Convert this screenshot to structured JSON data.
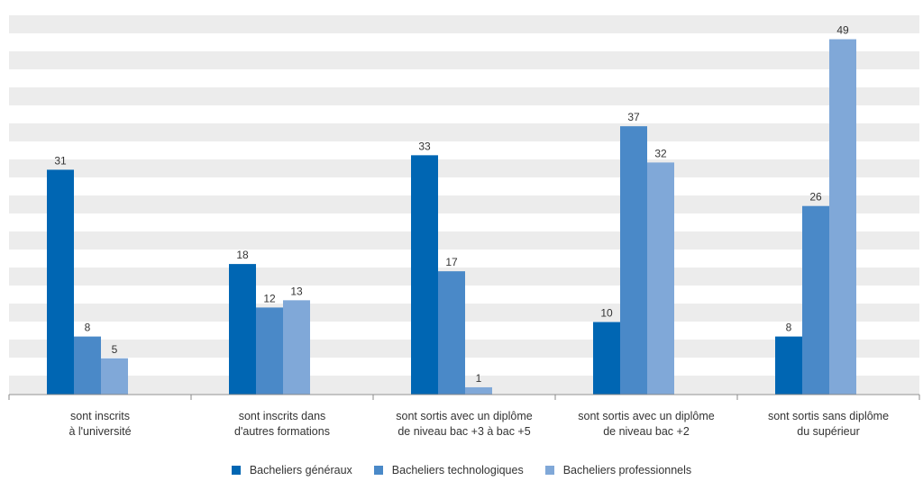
{
  "chart_data": {
    "type": "bar",
    "title": "",
    "xlabel": "",
    "ylabel": "",
    "ylim": [
      0,
      52
    ],
    "grid": "alternating horizontal bands",
    "legend_position": "bottom",
    "categories": [
      [
        "sont inscrits",
        "à l'université"
      ],
      [
        "sont inscrits dans",
        "d'autres formations"
      ],
      [
        "sont sortis avec un diplôme",
        "de niveau bac +3 à bac +5"
      ],
      [
        "sont sortis avec un diplôme",
        "de niveau bac +2"
      ],
      [
        "sont sortis sans diplôme",
        "du supérieur"
      ]
    ],
    "series": [
      {
        "name": "Bacheliers généraux",
        "color": "#0066b3",
        "values": [
          31,
          18,
          33,
          10,
          8
        ]
      },
      {
        "name": "Bacheliers technologiques",
        "color": "#4a89c8",
        "values": [
          8,
          12,
          17,
          37,
          26
        ]
      },
      {
        "name": "Bacheliers professionnels",
        "color": "#80a8d8",
        "values": [
          5,
          13,
          1,
          32,
          49
        ]
      }
    ]
  }
}
